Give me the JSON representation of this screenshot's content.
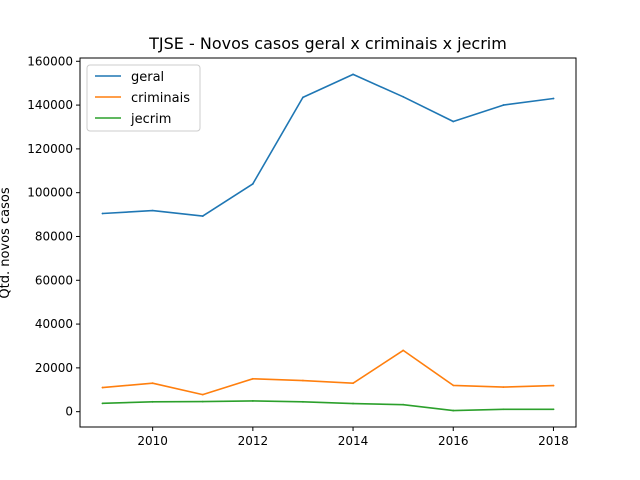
{
  "chart_data": {
    "type": "line",
    "title": "TJSE - Novos casos geral x criminais x jecrim",
    "xlabel": "",
    "ylabel": "Qtd. novos casos",
    "x": [
      2009,
      2010,
      2011,
      2012,
      2013,
      2014,
      2015,
      2016,
      2017,
      2018
    ],
    "xlim": [
      2008.55,
      2018.45
    ],
    "ylim": [
      -7000,
      161500
    ],
    "xticks": [
      2010,
      2012,
      2014,
      2016,
      2018
    ],
    "yticks": [
      0,
      20000,
      40000,
      60000,
      80000,
      100000,
      120000,
      140000,
      160000
    ],
    "grid": false,
    "legend_position": "upper-left",
    "series": [
      {
        "name": "geral",
        "color": "#1f77b4",
        "values": [
          90500,
          91800,
          89300,
          104000,
          143500,
          154000,
          143800,
          132500,
          140000,
          143000
        ]
      },
      {
        "name": "criminais",
        "color": "#ff7f0e",
        "values": [
          11000,
          13000,
          7800,
          15000,
          14200,
          13000,
          28000,
          12000,
          11200,
          11900
        ]
      },
      {
        "name": "jecrim",
        "color": "#2ca02c",
        "values": [
          3800,
          4500,
          4600,
          4900,
          4500,
          3700,
          3200,
          500,
          1100,
          1100
        ]
      }
    ]
  }
}
